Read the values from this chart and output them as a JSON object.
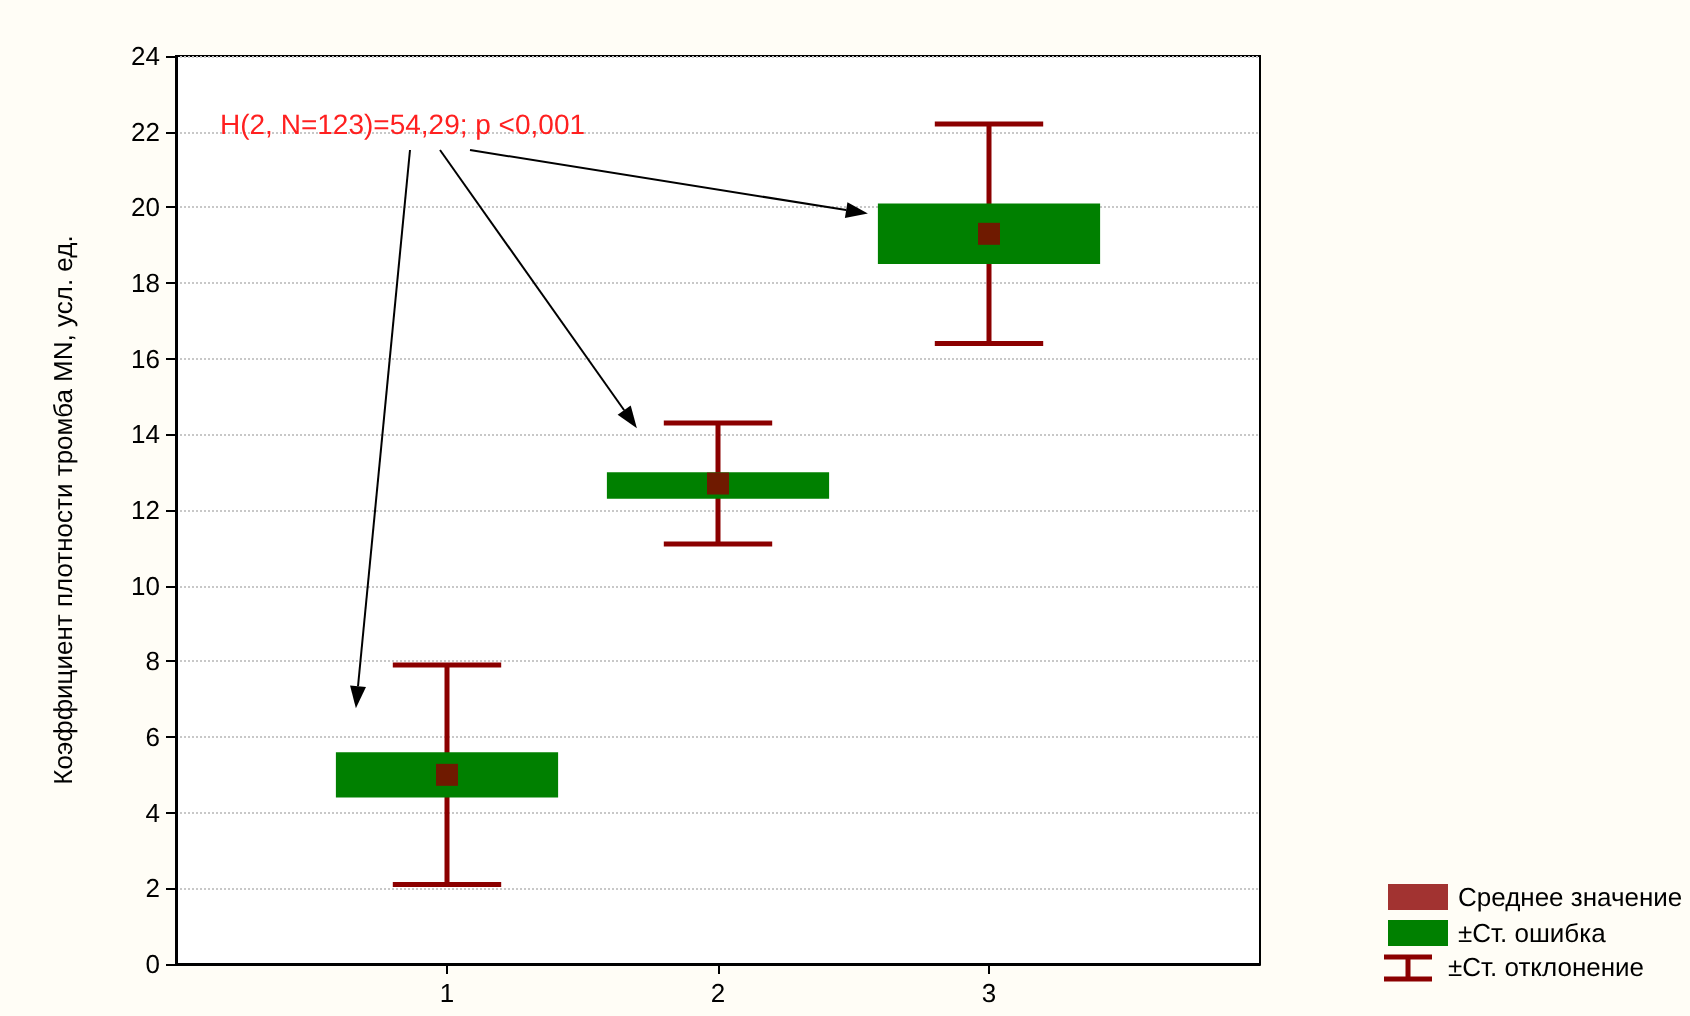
{
  "chart_data": {
    "type": "scatter",
    "ylabel": "Коэффициент плотности тромба MN, усл. ед.",
    "x": [
      1,
      2,
      3
    ],
    "xlim": [
      0,
      4
    ],
    "xticks": [
      1,
      2,
      3
    ],
    "ylim": [
      0,
      24
    ],
    "yticks": [
      0,
      2,
      4,
      6,
      8,
      10,
      12,
      14,
      16,
      18,
      20,
      22,
      24
    ],
    "grid": "y",
    "legend": "bottom right",
    "annotations": [
      "H(2, N=123)=54,29; p <0,001",
      "±Ст. отклонение"
    ],
    "series": [
      {
        "name": "Среднее значение",
        "color": "#8b0000",
        "marker": "square",
        "values": [
          5.0,
          12.7,
          19.3
        ],
        "errors": [
          2.9,
          1.6,
          2.9
        ]
      },
      {
        "name": "±Ст. ошибка",
        "type": "bar",
        "color": "#008000",
        "base": [
          4.4,
          12.3,
          18.5
        ],
        "values": [
          1.2,
          0.7,
          1.6
        ]
      }
    ]
  }
}
